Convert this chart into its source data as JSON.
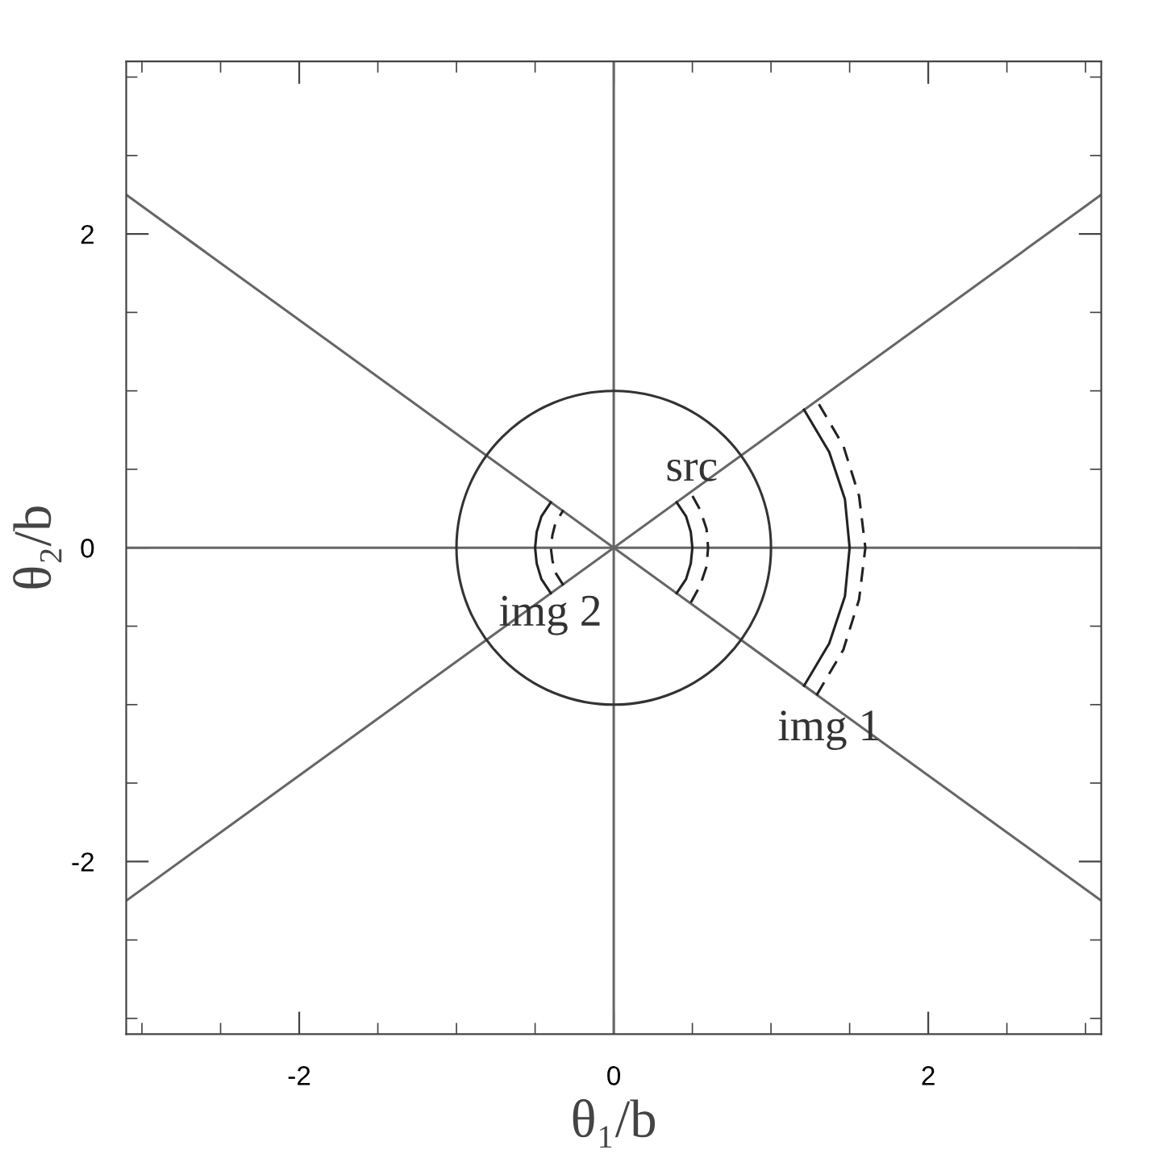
{
  "chart_data": {
    "type": "line",
    "xlabel": "θ₁/b",
    "ylabel": "θ₂/b",
    "xlim": [
      -3.1,
      3.1
    ],
    "ylim": [
      -3.1,
      3.1
    ],
    "xticks": [
      -2,
      0,
      2
    ],
    "yticks": [
      -2,
      0,
      2
    ],
    "grid": false,
    "legend": false,
    "marker": "none",
    "series": [
      {
        "color": "#666666",
        "line_style": "solid",
        "x": [
          -3.1,
          3.1
        ],
        "values": [
          0,
          0
        ]
      },
      {
        "color": "#666666",
        "line_style": "solid",
        "x": [
          0,
          0
        ],
        "values": [
          -3.1,
          3.1
        ]
      },
      {
        "color": "#666666",
        "line_style": "solid",
        "x": [
          -3.1,
          3.1
        ],
        "values": [
          -2.25,
          2.25
        ]
      },
      {
        "color": "#666666",
        "line_style": "solid",
        "x": [
          -3.1,
          3.1
        ],
        "values": [
          2.25,
          -2.25
        ]
      },
      {
        "color": "#222222",
        "line_style": "solid",
        "x": [
          0.4,
          0.46,
          0.49,
          0.5,
          0.49,
          0.46,
          0.4
        ],
        "values": [
          -0.29,
          -0.2,
          -0.1,
          0,
          0.1,
          0.2,
          0.29
        ]
      },
      {
        "color": "#222222",
        "line_style": "dashed",
        "x": [
          0.49,
          0.55,
          0.59,
          0.6,
          0.59,
          0.55,
          0.49
        ],
        "values": [
          -0.35,
          -0.24,
          -0.12,
          0,
          0.12,
          0.24,
          0.35
        ]
      },
      {
        "color": "#222222",
        "line_style": "solid",
        "x": [
          1.21,
          1.37,
          1.47,
          1.5,
          1.47,
          1.37,
          1.21
        ],
        "values": [
          -0.88,
          -0.61,
          -0.31,
          0,
          0.31,
          0.61,
          0.88
        ]
      },
      {
        "color": "#222222",
        "line_style": "dashed",
        "x": [
          1.29,
          1.46,
          1.56,
          1.6,
          1.56,
          1.46,
          1.29
        ],
        "values": [
          -0.94,
          -0.65,
          -0.33,
          0,
          0.33,
          0.65,
          0.94
        ]
      },
      {
        "color": "#222222",
        "line_style": "solid",
        "x": [
          -0.4,
          -0.46,
          -0.49,
          -0.5,
          -0.49,
          -0.46,
          -0.4
        ],
        "values": [
          -0.29,
          -0.2,
          -0.1,
          0,
          0.1,
          0.2,
          0.29
        ]
      },
      {
        "color": "#222222",
        "line_style": "dashed",
        "x": [
          -0.32,
          -0.37,
          -0.39,
          -0.4,
          -0.39,
          -0.37,
          -0.32
        ],
        "values": [
          -0.24,
          -0.16,
          -0.08,
          0,
          0.08,
          0.16,
          0.24
        ]
      }
    ],
    "annotations": [
      "src",
      "img 1",
      "img 2"
    ]
  }
}
